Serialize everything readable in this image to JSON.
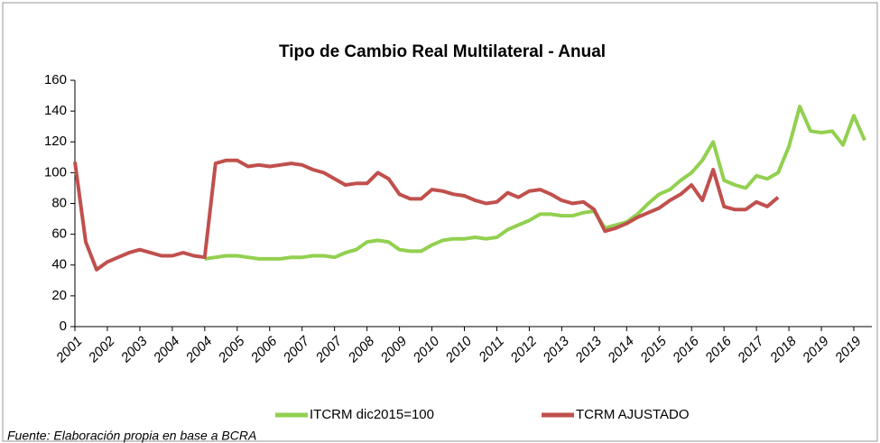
{
  "chart_data": {
    "type": "line",
    "title": "Tipo de Cambio Real Multilateral - Anual",
    "source": "Fuente: Elaboración propia en base a BCRA",
    "categories": [
      "2001",
      null,
      null,
      "2002",
      null,
      null,
      "2003",
      null,
      null,
      "2004",
      null,
      null,
      "2004",
      null,
      null,
      "2005",
      null,
      null,
      "2006",
      null,
      null,
      "2007",
      null,
      null,
      "2007",
      null,
      null,
      "2008",
      null,
      null,
      "2009",
      null,
      null,
      "2010",
      null,
      null,
      "2010",
      null,
      null,
      "2011",
      null,
      null,
      "2012",
      null,
      null,
      "2013",
      null,
      null,
      "2013",
      null,
      null,
      "2014",
      null,
      null,
      "2015",
      null,
      null,
      "2016",
      null,
      null,
      "2016",
      null,
      null,
      "2017",
      null,
      null,
      "2018",
      null,
      null,
      "2019",
      null,
      null,
      "2019",
      null
    ],
    "series": [
      {
        "name": "ITCRM dic2015=100",
        "color": "#92d050",
        "values": [
          null,
          null,
          null,
          null,
          null,
          null,
          null,
          null,
          null,
          null,
          null,
          null,
          44,
          45,
          46,
          46,
          45,
          44,
          44,
          44,
          45,
          45,
          46,
          46,
          45,
          48,
          50,
          55,
          56,
          55,
          50,
          49,
          49,
          53,
          56,
          57,
          57,
          58,
          57,
          58,
          63,
          66,
          69,
          73,
          73,
          72,
          72,
          74,
          75,
          64,
          66,
          68,
          73,
          80,
          86,
          89,
          95,
          100,
          108,
          120,
          95,
          92,
          90,
          98,
          96,
          100,
          117,
          143,
          127,
          126,
          127,
          118,
          137,
          121
        ]
      },
      {
        "name": "TCRM AJUSTADO",
        "color": "#c0504d",
        "values": [
          107,
          55,
          37,
          42,
          45,
          48,
          50,
          48,
          46,
          46,
          48,
          46,
          45,
          106,
          108,
          108,
          104,
          105,
          104,
          105,
          106,
          105,
          102,
          100,
          96,
          92,
          93,
          93,
          100,
          96,
          86,
          83,
          83,
          89,
          88,
          86,
          85,
          82,
          80,
          81,
          87,
          84,
          88,
          89,
          86,
          82,
          80,
          81,
          76,
          62,
          64,
          67,
          71,
          74,
          77,
          82,
          86,
          92,
          82,
          102,
          78,
          76,
          76,
          81,
          78,
          84,
          null,
          null,
          null,
          null,
          null,
          null,
          null,
          null
        ]
      }
    ],
    "ylim": [
      0,
      160
    ],
    "yticks": [
      0,
      20,
      40,
      60,
      80,
      100,
      120,
      140,
      160
    ]
  }
}
